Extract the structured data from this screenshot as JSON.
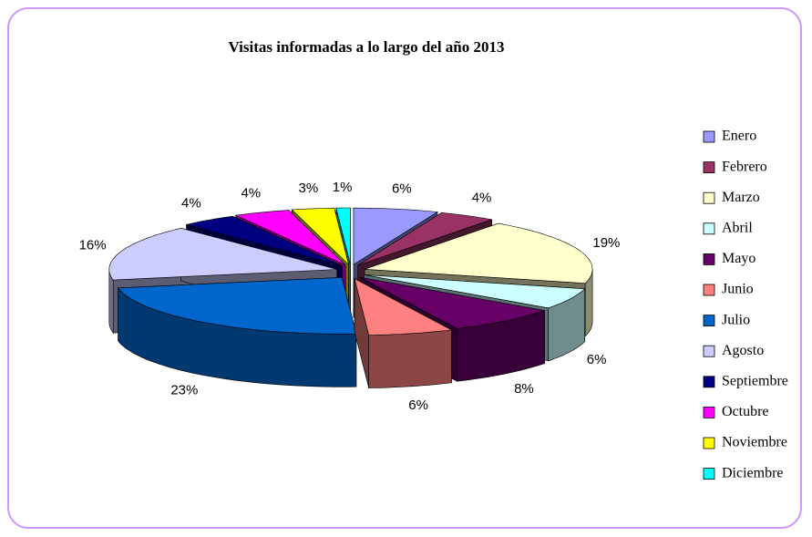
{
  "chart_data": {
    "type": "pie3d",
    "title": "Visitas informadas a lo largo del año 2013",
    "categories": [
      "Enero",
      "Febrero",
      "Marzo",
      "Abril",
      "Mayo",
      "Junio",
      "Julio",
      "Agosto",
      "Septiembre",
      "Octubre",
      "Noviembre",
      "Diciembre"
    ],
    "values": [
      6,
      4,
      19,
      6,
      8,
      6,
      23,
      16,
      4,
      4,
      3,
      1
    ],
    "value_labels": [
      "6%",
      "4%",
      "19%",
      "6%",
      "8%",
      "6%",
      "23%",
      "16%",
      "4%",
      "4%",
      "3%",
      "1%"
    ],
    "colors": [
      "#9999ff",
      "#993366",
      "#ffffcc",
      "#ccffff",
      "#660066",
      "#ff8080",
      "#0066cc",
      "#ccccff",
      "#000080",
      "#ff00ff",
      "#ffff00",
      "#00ffff"
    ],
    "legend": "right"
  }
}
